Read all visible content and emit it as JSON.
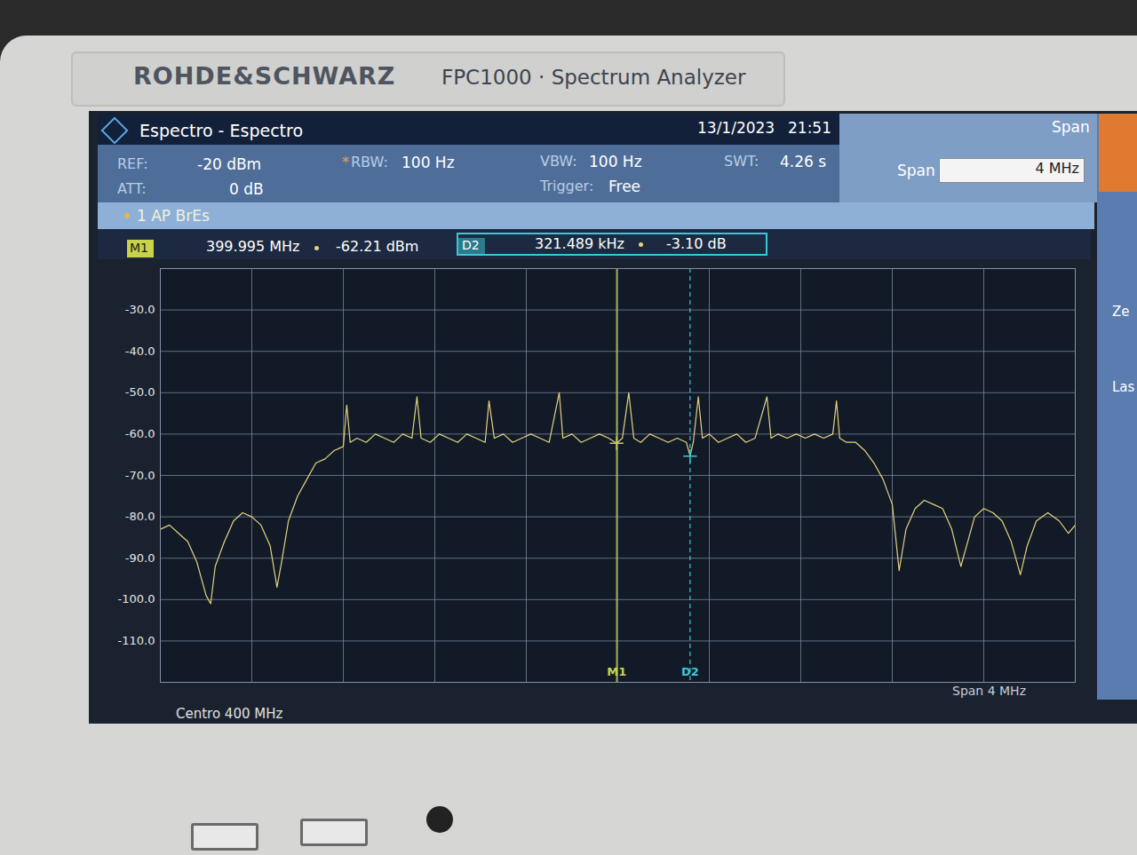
{
  "device": {
    "brand": "ROHDE&SCHWARZ",
    "model": "FPC1000 · Spectrum Analyzer"
  },
  "header": {
    "title": "Espectro - Espectro",
    "date": "13/1/2023",
    "time": "21:51",
    "mode": "Span"
  },
  "settings": [
    {
      "label": "REF:",
      "value": "-20 dBm"
    },
    {
      "label": "ATT:",
      "value": "0 dB"
    },
    {
      "label": "*RBW:",
      "value": "100 Hz"
    },
    {
      "label": "VBW:",
      "value": "100 Hz"
    },
    {
      "label": "Trigger:",
      "value": "Free"
    },
    {
      "label": "SWT:",
      "value": "4.26 s"
    }
  ],
  "span_input": {
    "label": "Span",
    "value": "4 MHz"
  },
  "side_keys": [
    "Ze",
    "Las"
  ],
  "chart_data": {
    "type": "line",
    "x": [
      398,
      398.04,
      398.08,
      398.12,
      398.16,
      398.2,
      398.22,
      398.24,
      398.28,
      398.32,
      398.36,
      398.4,
      398.44,
      398.48,
      398.51,
      398.53,
      398.56,
      398.6,
      398.64,
      398.68,
      398.72,
      398.76,
      398.8,
      398.815,
      398.83,
      398.86,
      398.9,
      398.94,
      398.98,
      399.02,
      399.06,
      399.1,
      399.122,
      399.14,
      399.18,
      399.22,
      399.26,
      399.3,
      399.34,
      399.38,
      399.42,
      399.437,
      399.46,
      399.5,
      399.54,
      399.58,
      399.62,
      399.66,
      399.7,
      399.744,
      399.76,
      399.8,
      399.84,
      399.88,
      399.92,
      399.96,
      399.995,
      400.02,
      400.048,
      400.07,
      400.1,
      400.14,
      400.18,
      400.22,
      400.26,
      400.3,
      400.316,
      400.33,
      400.352,
      400.37,
      400.4,
      400.44,
      400.48,
      400.52,
      400.56,
      400.6,
      400.652,
      400.67,
      400.7,
      400.74,
      400.78,
      400.82,
      400.86,
      400.9,
      400.94,
      400.956,
      400.97,
      401,
      401.04,
      401.08,
      401.12,
      401.16,
      401.2,
      401.23,
      401.26,
      401.3,
      401.34,
      401.38,
      401.42,
      401.46,
      401.5,
      401.53,
      401.56,
      401.6,
      401.64,
      401.68,
      401.72,
      401.76,
      401.79,
      401.83,
      401.88,
      401.93,
      401.97,
      402
    ],
    "series": [
      {
        "name": "1 AP BrEs",
        "color": "#e6d27c",
        "values": [
          -83,
          -82,
          -84,
          -86,
          -91,
          -99,
          -101,
          -92,
          -86,
          -81,
          -79,
          -80,
          -82,
          -87,
          -97,
          -91,
          -81,
          -75,
          -71,
          -67,
          -66,
          -64,
          -63,
          -53,
          -62,
          -61,
          -62,
          -60,
          -61,
          -62,
          -60,
          -61,
          -51,
          -61,
          -62,
          -60,
          -61,
          -62,
          -60,
          -61,
          -62,
          -52,
          -61,
          -60,
          -62,
          -61,
          -60,
          -61,
          -62,
          -50,
          -61,
          -60,
          -62,
          -61,
          -60,
          -61,
          -62.21,
          -61,
          -50,
          -61,
          -62,
          -60,
          -61,
          -62,
          -61,
          -62,
          -65.31,
          -62,
          -51,
          -61,
          -60,
          -62,
          -61,
          -60,
          -62,
          -61,
          -51,
          -61,
          -60,
          -61,
          -60,
          -61,
          -60,
          -61,
          -60,
          -52,
          -61,
          -62,
          -62,
          -64,
          -67,
          -71,
          -77,
          -93,
          -83,
          -78,
          -76,
          -77,
          -78,
          -83,
          -92,
          -86,
          -80,
          -78,
          -79,
          -81,
          -86,
          -94,
          -87,
          -81,
          -79,
          -81,
          -84,
          -82
        ]
      }
    ],
    "xlim": [
      398,
      402
    ],
    "xticks": [
      398,
      398.4,
      398.8,
      399.2,
      399.6,
      400,
      400.4,
      400.8,
      401.2,
      401.6,
      402
    ],
    "ylim": [
      -120,
      -20
    ],
    "yticks": [
      {
        "value": -30,
        "label": "-30.0"
      },
      {
        "value": -40,
        "label": "-40.0"
      },
      {
        "value": -50,
        "label": "-50.0"
      },
      {
        "value": -60,
        "label": "-60.0"
      },
      {
        "value": -70,
        "label": "-70.0"
      },
      {
        "value": -80,
        "label": "-80.0"
      },
      {
        "value": -90,
        "label": "-90.0"
      },
      {
        "value": -100,
        "label": "-100.0"
      },
      {
        "value": -110,
        "label": "-110.0"
      }
    ],
    "grid": true,
    "tick_labels": "y",
    "markers": [
      {
        "name": "M1",
        "x": 399.995,
        "y": -62.21,
        "x_label": "399.995 MHz",
        "y_label": "-62.21 dBm",
        "color": "#c8d24a",
        "line_style": "solid"
      },
      {
        "name": "D2",
        "x": 400.316,
        "y": -65.31,
        "x_label": "321.489 kHz",
        "y_label": "-3.10 dB",
        "color": "#3cc6d6",
        "line_style": "dashed"
      }
    ],
    "footer_left": "Centro 400 MHz",
    "footer_right": "Span 4 MHz"
  }
}
